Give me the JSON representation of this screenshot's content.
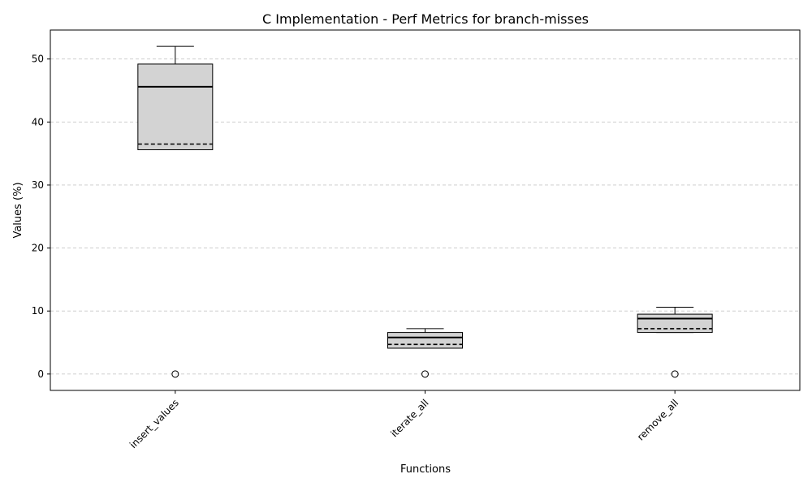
{
  "chart_data": {
    "type": "box",
    "title": "C Implementation - Perf Metrics for branch-misses",
    "xlabel": "Functions",
    "ylabel": "Values (%)",
    "ylim": [
      -2.6,
      54.6
    ],
    "yticks": [
      0,
      10,
      20,
      30,
      40,
      50
    ],
    "grid": "horizontal dashed",
    "categories": [
      "insert_values",
      "iterate_all",
      "remove_all"
    ],
    "boxes": [
      {
        "category": "insert_values",
        "whisker_low": 35.6,
        "q1": 35.6,
        "median": 45.6,
        "mean": 36.5,
        "q3": 49.2,
        "whisker_high": 52.0,
        "outliers": [
          0
        ]
      },
      {
        "category": "iterate_all",
        "whisker_low": 4.1,
        "q1": 4.1,
        "median": 5.8,
        "mean": 4.7,
        "q3": 6.6,
        "whisker_high": 7.2,
        "outliers": [
          0
        ]
      },
      {
        "category": "remove_all",
        "whisker_low": 6.6,
        "q1": 6.6,
        "median": 8.8,
        "mean": 7.2,
        "q3": 9.5,
        "whisker_high": 10.6,
        "outliers": [
          0
        ]
      }
    ],
    "colors": {
      "box_fill": "#d3d3d3",
      "stroke": "#000000",
      "grid": "#c8c8c8"
    }
  }
}
